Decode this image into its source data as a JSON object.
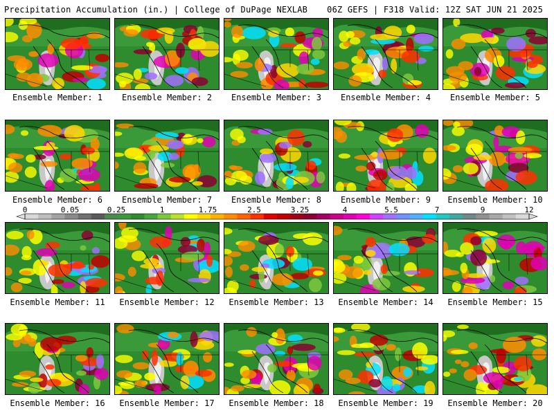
{
  "header": {
    "left": "Precipitation Accumulation (in.) | College of DuPage NEXLAB",
    "right": "06Z GEFS | F318 Valid: 12Z SAT JUN 21 2025"
  },
  "members": [
    {
      "label": "Ensemble Member: 1"
    },
    {
      "label": "Ensemble Member: 2"
    },
    {
      "label": "Ensemble Member: 3"
    },
    {
      "label": "Ensemble Member: 4"
    },
    {
      "label": "Ensemble Member: 5"
    },
    {
      "label": "Ensemble Member: 6"
    },
    {
      "label": "Ensemble Member: 7"
    },
    {
      "label": "Ensemble Member: 8"
    },
    {
      "label": "Ensemble Member: 9"
    },
    {
      "label": "Ensemble Member: 10"
    },
    {
      "label": "Ensemble Member: 11"
    },
    {
      "label": "Ensemble Member: 12"
    },
    {
      "label": "Ensemble Member: 13"
    },
    {
      "label": "Ensemble Member: 14"
    },
    {
      "label": "Ensemble Member: 15"
    },
    {
      "label": "Ensemble Member: 16"
    },
    {
      "label": "Ensemble Member: 17"
    },
    {
      "label": "Ensemble Member: 18"
    },
    {
      "label": "Ensemble Member: 19"
    },
    {
      "label": "Ensemble Member: 20"
    }
  ],
  "colorbar": {
    "ticks": [
      "0",
      "0.05",
      "0.25",
      "1",
      "1.75",
      "2.5",
      "3.25",
      "4",
      "5.5",
      "7",
      "9",
      "12"
    ],
    "colors": [
      "#d8d8d8",
      "#bdbdbd",
      "#a3a3a3",
      "#8a8a8a",
      "#707070",
      "#5a5a5a",
      "#4a8a4a",
      "#3a9a3a",
      "#2e8b2e",
      "#46a83a",
      "#7cc83c",
      "#b8e02c",
      "#ffff00",
      "#ffd800",
      "#ffb000",
      "#ff8c00",
      "#ff6400",
      "#ff3000",
      "#e00000",
      "#c00000",
      "#a00018",
      "#8b0030",
      "#a00060",
      "#c8008c",
      "#e000b4",
      "#ff00d8",
      "#d040ff",
      "#a070ff",
      "#7090ff",
      "#50b0ff",
      "#00e0ff",
      "#20c8c0",
      "#40a8a0",
      "#708888",
      "#909090",
      "#a8a8a8",
      "#c0c0c0",
      "#d8d8d8"
    ]
  }
}
